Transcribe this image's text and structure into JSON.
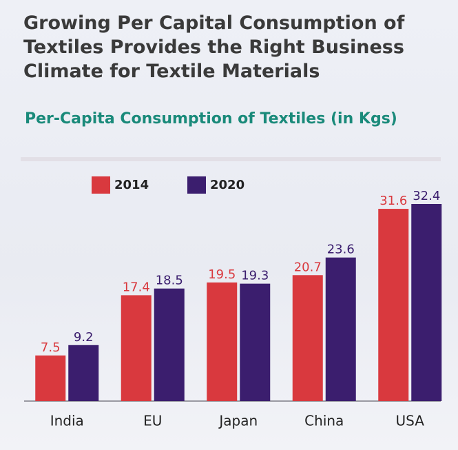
{
  "chart_data": {
    "type": "bar",
    "title": "Growing Per Capital Consumption of\nTextiles Provides the Right Business\nClimate for Textile Materials",
    "subtitle": "Per-Capita Consumption of Textiles (in Kgs)",
    "categories": [
      "India",
      "EU",
      "Japan",
      "China",
      "USA"
    ],
    "series": [
      {
        "name": "2014",
        "color": "#d9393e",
        "values": [
          7.5,
          17.4,
          19.5,
          20.7,
          31.6
        ]
      },
      {
        "name": "2020",
        "color": "#3b1e6e",
        "values": [
          9.2,
          18.5,
          19.3,
          23.6,
          32.4
        ]
      }
    ]
  }
}
